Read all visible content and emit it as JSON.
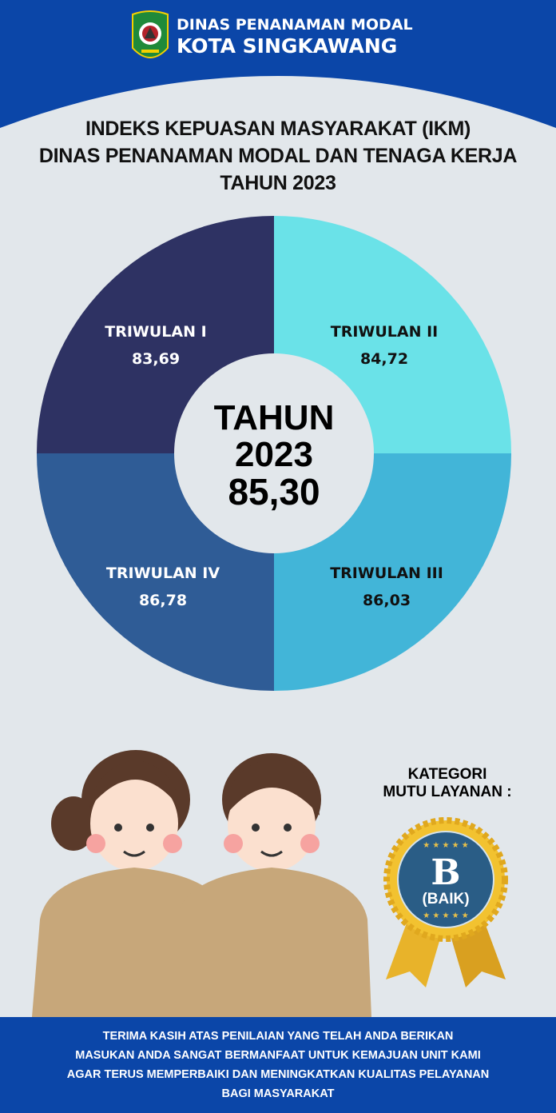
{
  "header": {
    "line1": "DINAS PENANAMAN MODAL",
    "line2": "KOTA SINGKAWANG"
  },
  "title": {
    "line1": "INDEKS KEPUASAN MASYARAKAT (IKM)",
    "line2": "DINAS PENANAMAN MODAL DAN TENAGA KERJA",
    "line3": "TAHUN 2023"
  },
  "quarters": [
    {
      "label": "TRIWULAN I",
      "value": "83,69",
      "color": "#2e3263",
      "text_color": "#ffffff"
    },
    {
      "label": "TRIWULAN II",
      "value": "84,72",
      "color": "#6ae2e8",
      "text_color": "#111111"
    },
    {
      "label": "TRIWULAN III",
      "value": "86,03",
      "color": "#42b5d8",
      "text_color": "#111111"
    },
    {
      "label": "TRIWULAN IV",
      "value": "86,78",
      "color": "#2f5c96",
      "text_color": "#ffffff"
    }
  ],
  "center": {
    "line1": "TAHUN",
    "line2": "2023",
    "line3": "85,30"
  },
  "category": {
    "label_line1": "KATEGORI",
    "label_line2": "MUTU LAYANAN :",
    "grade": "B",
    "grade_text": "(BAIK)"
  },
  "footer": {
    "lines": [
      "TERIMA KASIH ATAS PENILAIAN YANG TELAH ANDA BERIKAN",
      "MASUKAN ANDA SANGAT BERMANFAAT UNTUK KEMAJUAN UNIT KAMI",
      "AGAR TERUS MEMPERBAIKI DAN MENINGKATKAN KUALITAS PELAYANAN",
      "BAGI MASYARAKAT"
    ]
  }
}
